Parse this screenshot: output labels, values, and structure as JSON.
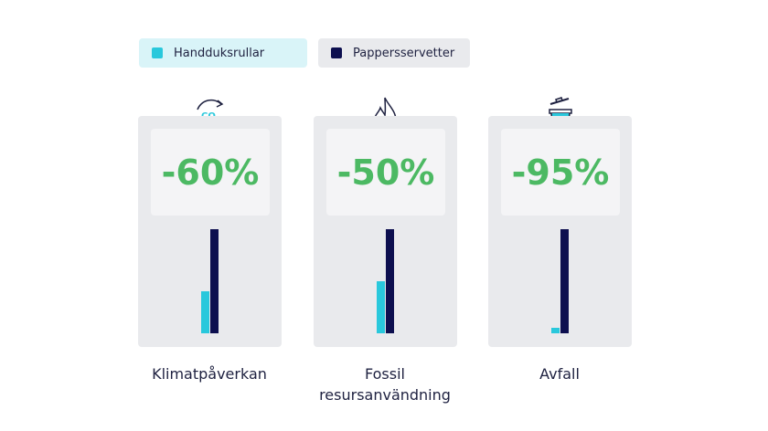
{
  "chart_data": {
    "type": "bar",
    "categories": [
      "Klimatpåverkan",
      "Fossil resursanvändning",
      "Avfall"
    ],
    "changes": [
      "-60%",
      "-50%",
      "-95%"
    ],
    "series": [
      {
        "name": "Handduksrullar",
        "color": "#29c8dc",
        "values": [
          40,
          50,
          5
        ]
      },
      {
        "name": "Pappersservetter",
        "color": "#0d0f4f",
        "values": [
          100,
          100,
          100
        ]
      }
    ],
    "ylim": [
      0,
      100
    ]
  }
}
